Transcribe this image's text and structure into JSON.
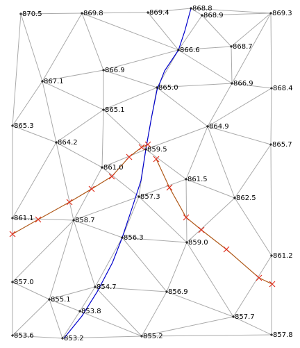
{
  "nodes": [
    {
      "label": "870.5"
    },
    {
      "label": "869.8"
    },
    {
      "label": "869.4"
    },
    {
      "label": "868.8"
    },
    {
      "label": "868.9"
    },
    {
      "label": "869.3"
    },
    {
      "label": "866.6"
    },
    {
      "label": "868.7"
    },
    {
      "label": "866.9"
    },
    {
      "label": "867.1"
    },
    {
      "label": "865.0"
    },
    {
      "label": "866.9"
    },
    {
      "label": "868.4"
    },
    {
      "label": "865.1"
    },
    {
      "label": "865.3"
    },
    {
      "label": "864.9"
    },
    {
      "label": "864.2"
    },
    {
      "label": "865.7"
    },
    {
      "label": "859.5"
    },
    {
      "label": "861.0"
    },
    {
      "label": "861.5"
    },
    {
      "label": "857.3"
    },
    {
      "label": "862.5"
    },
    {
      "label": "861.1"
    },
    {
      "label": "858.7"
    },
    {
      "label": "856.3"
    },
    {
      "label": "859.0"
    },
    {
      "label": "861.2"
    },
    {
      "label": "857.0"
    },
    {
      "label": "854.7"
    },
    {
      "label": "856.9"
    },
    {
      "label": "855.1"
    },
    {
      "label": "853.8"
    },
    {
      "label": "857.7"
    },
    {
      "label": "853.6"
    },
    {
      "label": "853.2"
    },
    {
      "label": "855.2"
    },
    {
      "label": "857.8"
    }
  ]
}
